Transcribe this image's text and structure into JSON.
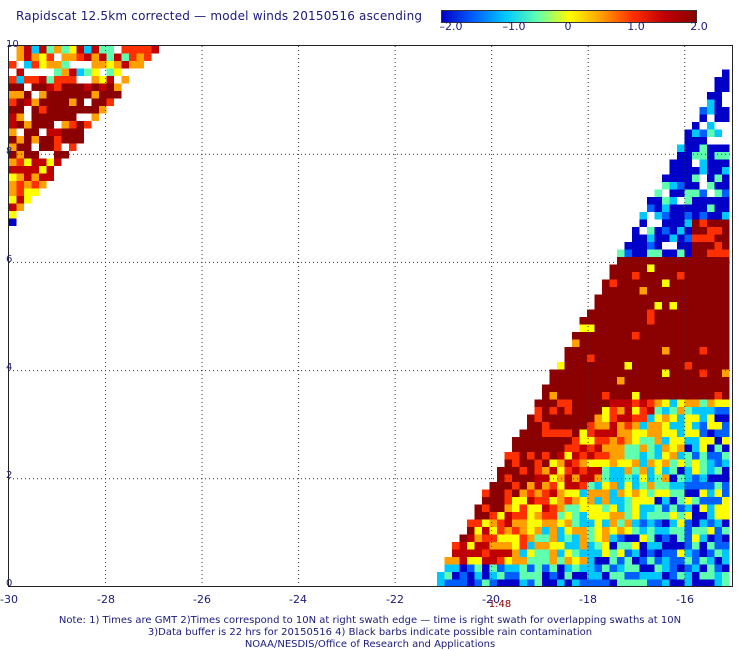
{
  "title": "Rapidscat 12.5km corrected — model winds 20150516 ascending",
  "colorbar": {
    "ticks": [
      "–2.0",
      "–1.0",
      "0",
      "1.0",
      "2.0"
    ],
    "colors": [
      "#0000c8",
      "#0060ff",
      "#00c8ff",
      "#60ffb0",
      "#ffff00",
      "#ffa000",
      "#ff3000",
      "#c00000",
      "#8b0000"
    ]
  },
  "y_axis": {
    "labels": [
      "10",
      "8",
      "6",
      "4",
      "2",
      "0"
    ]
  },
  "x_axis": {
    "labels": [
      "-30",
      "-28",
      "-26",
      "-24",
      "-22",
      "-20",
      "-18",
      "-16"
    ]
  },
  "time_label": "1:48",
  "notes": [
    "Note: 1) Times are GMT 2)Times correspond to 10N at right swath edge — time is right swath for overlapping swaths at 10N",
    "3)Data buffer is 22 hrs for 20150516 4) Black barbs indicate possible rain contamination",
    "NOAA/NESDIS/Office of Research and Applications"
  ]
}
